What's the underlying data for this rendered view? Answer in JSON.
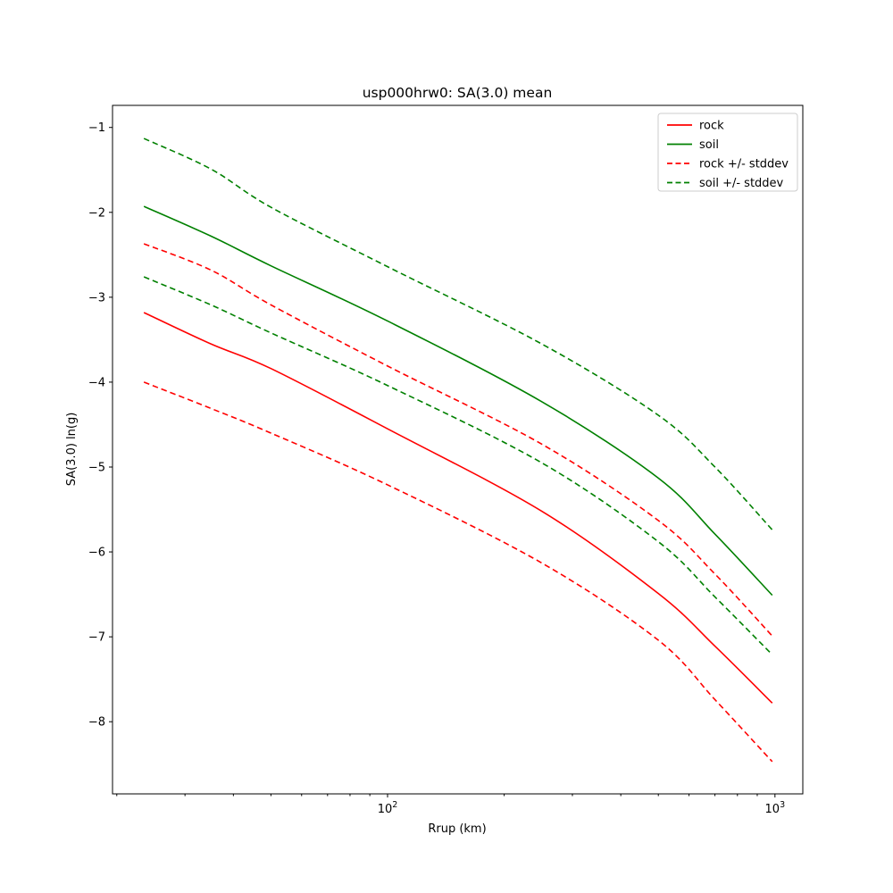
{
  "chart_data": {
    "type": "line",
    "title": "usp000hrw0: SA(3.0) mean",
    "xlabel": "Rrup (km)",
    "ylabel": "SA(3.0) ln(g)",
    "x_scale": "log",
    "y_scale": "linear",
    "xlim": [
      19.5,
      1180
    ],
    "ylim": [
      -8.85,
      -0.74
    ],
    "grid": false,
    "y_ticks": [
      -1,
      -2,
      -3,
      -4,
      -5,
      -6,
      -7,
      -8
    ],
    "x_major_ticks": [
      {
        "value": 100,
        "base": "10",
        "exponent": "2"
      },
      {
        "value": 1000,
        "base": "10",
        "exponent": "3"
      }
    ],
    "x_minor_ticks": [
      20,
      30,
      40,
      50,
      60,
      70,
      80,
      90,
      200,
      300,
      400,
      500,
      600,
      700,
      800,
      900
    ],
    "x": [
      23.5,
      35,
      50,
      100,
      250,
      500,
      700,
      984
    ],
    "series": [
      {
        "name": "soil + stddev",
        "color": "#008000",
        "dash": "dashed",
        "values": [
          -1.13,
          -1.49,
          -1.94,
          -2.64,
          -3.55,
          -4.39,
          -5.0,
          -5.74
        ]
      },
      {
        "name": "soil",
        "color": "#008000",
        "dash": "solid",
        "values": [
          -1.93,
          -2.28,
          -2.63,
          -3.28,
          -4.23,
          -5.13,
          -5.79,
          -6.51
        ]
      },
      {
        "name": "rock + stddev",
        "color": "#ff0000",
        "dash": "dashed",
        "values": [
          -2.37,
          -2.68,
          -3.09,
          -3.81,
          -4.73,
          -5.63,
          -6.26,
          -6.99
        ]
      },
      {
        "name": "soil - stddev",
        "color": "#008000",
        "dash": "dashed",
        "values": [
          -2.76,
          -3.09,
          -3.42,
          -4.04,
          -4.95,
          -5.88,
          -6.53,
          -7.21
        ]
      },
      {
        "name": "rock",
        "color": "#ff0000",
        "dash": "solid",
        "values": [
          -3.18,
          -3.55,
          -3.84,
          -4.55,
          -5.52,
          -6.49,
          -7.11,
          -7.78
        ]
      },
      {
        "name": "rock - stddev",
        "color": "#ff0000",
        "dash": "dashed",
        "values": [
          -4.0,
          -4.31,
          -4.6,
          -5.21,
          -6.13,
          -7.04,
          -7.74,
          -8.47
        ]
      }
    ],
    "legend": {
      "position": "upper right",
      "entries": [
        {
          "label": "rock",
          "color": "#ff0000",
          "dash": "solid"
        },
        {
          "label": "soil",
          "color": "#008000",
          "dash": "solid"
        },
        {
          "label": "rock +/- stddev",
          "color": "#ff0000",
          "dash": "dashed"
        },
        {
          "label": "soil +/- stddev",
          "color": "#008000",
          "dash": "dashed"
        }
      ]
    },
    "colors": {
      "rock": "#ff0000",
      "soil": "#008000",
      "spine": "#000000",
      "legend_border": "#cccccc",
      "background": "#ffffff"
    }
  }
}
